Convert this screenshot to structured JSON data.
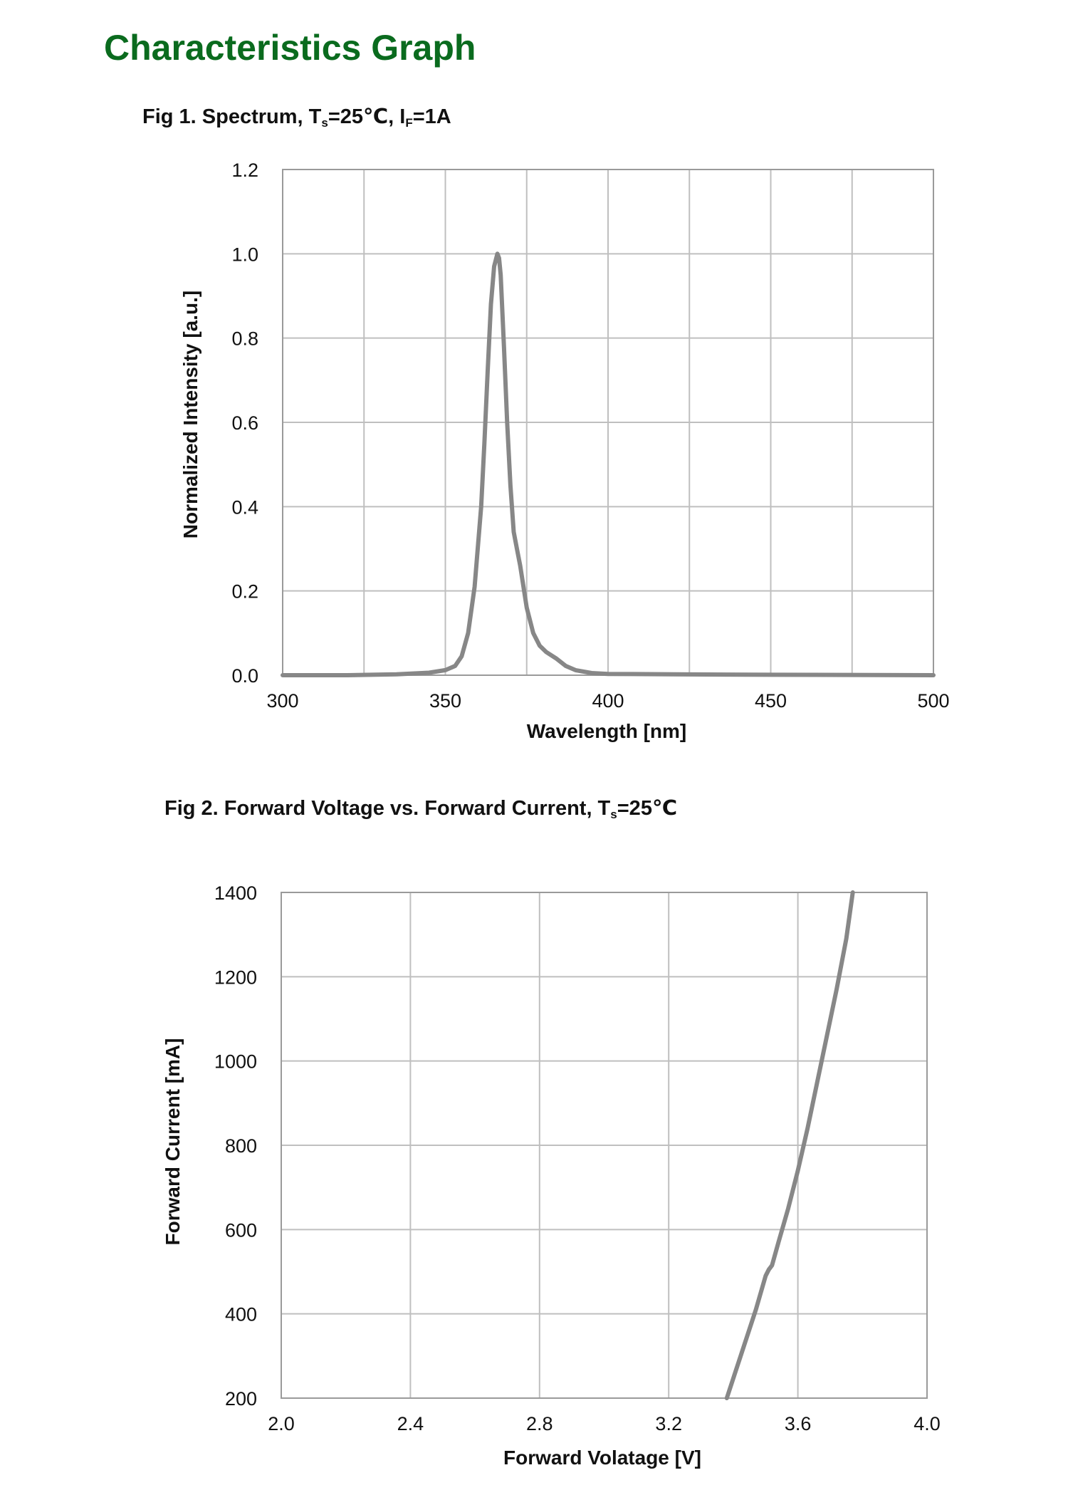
{
  "page": {
    "title": "Characteristics Graph",
    "title_color": "#0a6b1e"
  },
  "chart_data": [
    {
      "type": "line",
      "title_parts": {
        "prefix": "Fig 1. Spectrum, T",
        "sub1": "s",
        "mid": "=25℃, I",
        "sub2": "F",
        "suffix": "=1A"
      },
      "xlabel": "Wavelength [nm]",
      "ylabel": "Normalized Intensity [a.u.]",
      "xlim": [
        300,
        500
      ],
      "ylim": [
        0,
        1.2
      ],
      "x_ticks": [
        300,
        350,
        400,
        450,
        500
      ],
      "x_tick_labels": [
        "300",
        "350",
        "400",
        "450",
        "500"
      ],
      "y_ticks": [
        0,
        0.2,
        0.4,
        0.6,
        0.8,
        1.0,
        1.2
      ],
      "y_tick_labels": [
        "0.0",
        "0.2",
        "0.4",
        "0.6",
        "0.8",
        "1.0",
        "1.2"
      ],
      "x_grid_step": 25,
      "grid": true,
      "line_color": "#878787",
      "series": [
        {
          "x": [
            300,
            320,
            335,
            345,
            350,
            353,
            355,
            357,
            359,
            361,
            362,
            363,
            364,
            365,
            366,
            366.5,
            367,
            368,
            369,
            370,
            371,
            372,
            373,
            375,
            377,
            379,
            381,
            384,
            387,
            390,
            395,
            400,
            420,
            450,
            500
          ],
          "y": [
            0.0,
            0.0,
            0.002,
            0.006,
            0.012,
            0.022,
            0.045,
            0.1,
            0.21,
            0.4,
            0.55,
            0.72,
            0.88,
            0.97,
            1.0,
            0.99,
            0.95,
            0.78,
            0.6,
            0.45,
            0.34,
            0.3,
            0.26,
            0.16,
            0.1,
            0.07,
            0.055,
            0.04,
            0.022,
            0.012,
            0.005,
            0.003,
            0.002,
            0.001,
            0.0
          ]
        }
      ]
    },
    {
      "type": "line",
      "title_parts": {
        "prefix": "Fig 2. Forward Voltage vs. Forward Current, T",
        "sub1": "s",
        "suffix": "=25℃"
      },
      "xlabel": "Forward  Volatage [V]",
      "ylabel": "Forward Current [mA]",
      "xlim": [
        2.0,
        4.0
      ],
      "ylim": [
        200,
        1400
      ],
      "x_ticks": [
        2.0,
        2.4,
        2.8,
        3.2,
        3.6,
        4.0
      ],
      "x_tick_labels": [
        "2.0",
        "2.4",
        "2.8",
        "3.2",
        "3.6",
        "4.0"
      ],
      "y_ticks": [
        200,
        400,
        600,
        800,
        1000,
        1200,
        1400
      ],
      "y_tick_labels": [
        "200",
        "400",
        "600",
        "800",
        "1000",
        "1200",
        "1400"
      ],
      "grid": true,
      "line_color": "#878787",
      "series": [
        {
          "x": [
            3.38,
            3.41,
            3.44,
            3.47,
            3.5,
            3.51,
            3.52,
            3.54,
            3.57,
            3.6,
            3.63,
            3.66,
            3.69,
            3.72,
            3.75,
            3.77
          ],
          "y": [
            200,
            270,
            340,
            410,
            490,
            505,
            515,
            570,
            650,
            740,
            840,
            950,
            1060,
            1170,
            1290,
            1400
          ]
        }
      ]
    }
  ]
}
